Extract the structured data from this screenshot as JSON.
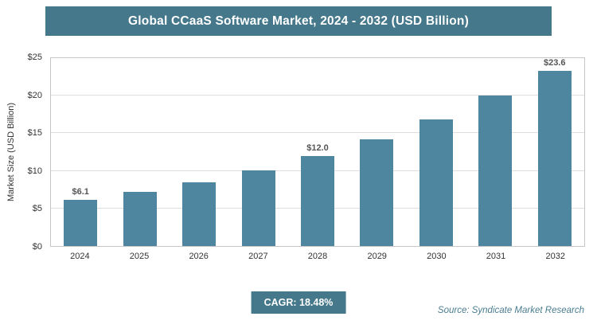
{
  "chart_data": {
    "type": "bar",
    "title": "Global CCaaS Software Market, 2024 - 2032 (USD Billion)",
    "ylabel": "Market Size (USD Billion)",
    "xlabel": "",
    "categories": [
      "2024",
      "2025",
      "2026",
      "2027",
      "2028",
      "2029",
      "2030",
      "2031",
      "2032"
    ],
    "values": [
      6.1,
      7.2,
      8.5,
      10.1,
      12.0,
      14.2,
      16.8,
      20.0,
      23.6
    ],
    "point_labels": [
      "$6.1",
      "",
      "",
      "",
      "$12.0",
      "",
      "",
      "",
      "$23.6"
    ],
    "ylim": [
      0,
      25
    ],
    "ytick_step": 5,
    "y_tick_labels": [
      "$0",
      "$5",
      "$10",
      "$15",
      "$20",
      "$25"
    ],
    "grid": true,
    "legend": "none"
  },
  "footer": {
    "cagr_label": "CAGR: 18.48%",
    "source": "Source: Syndicate Market Research"
  },
  "colors": {
    "banner": "#45788B",
    "bar": "#4E86A0",
    "grid": "#DEDEDE",
    "source_text": "#4A7D90",
    "label_text": "#555555"
  }
}
